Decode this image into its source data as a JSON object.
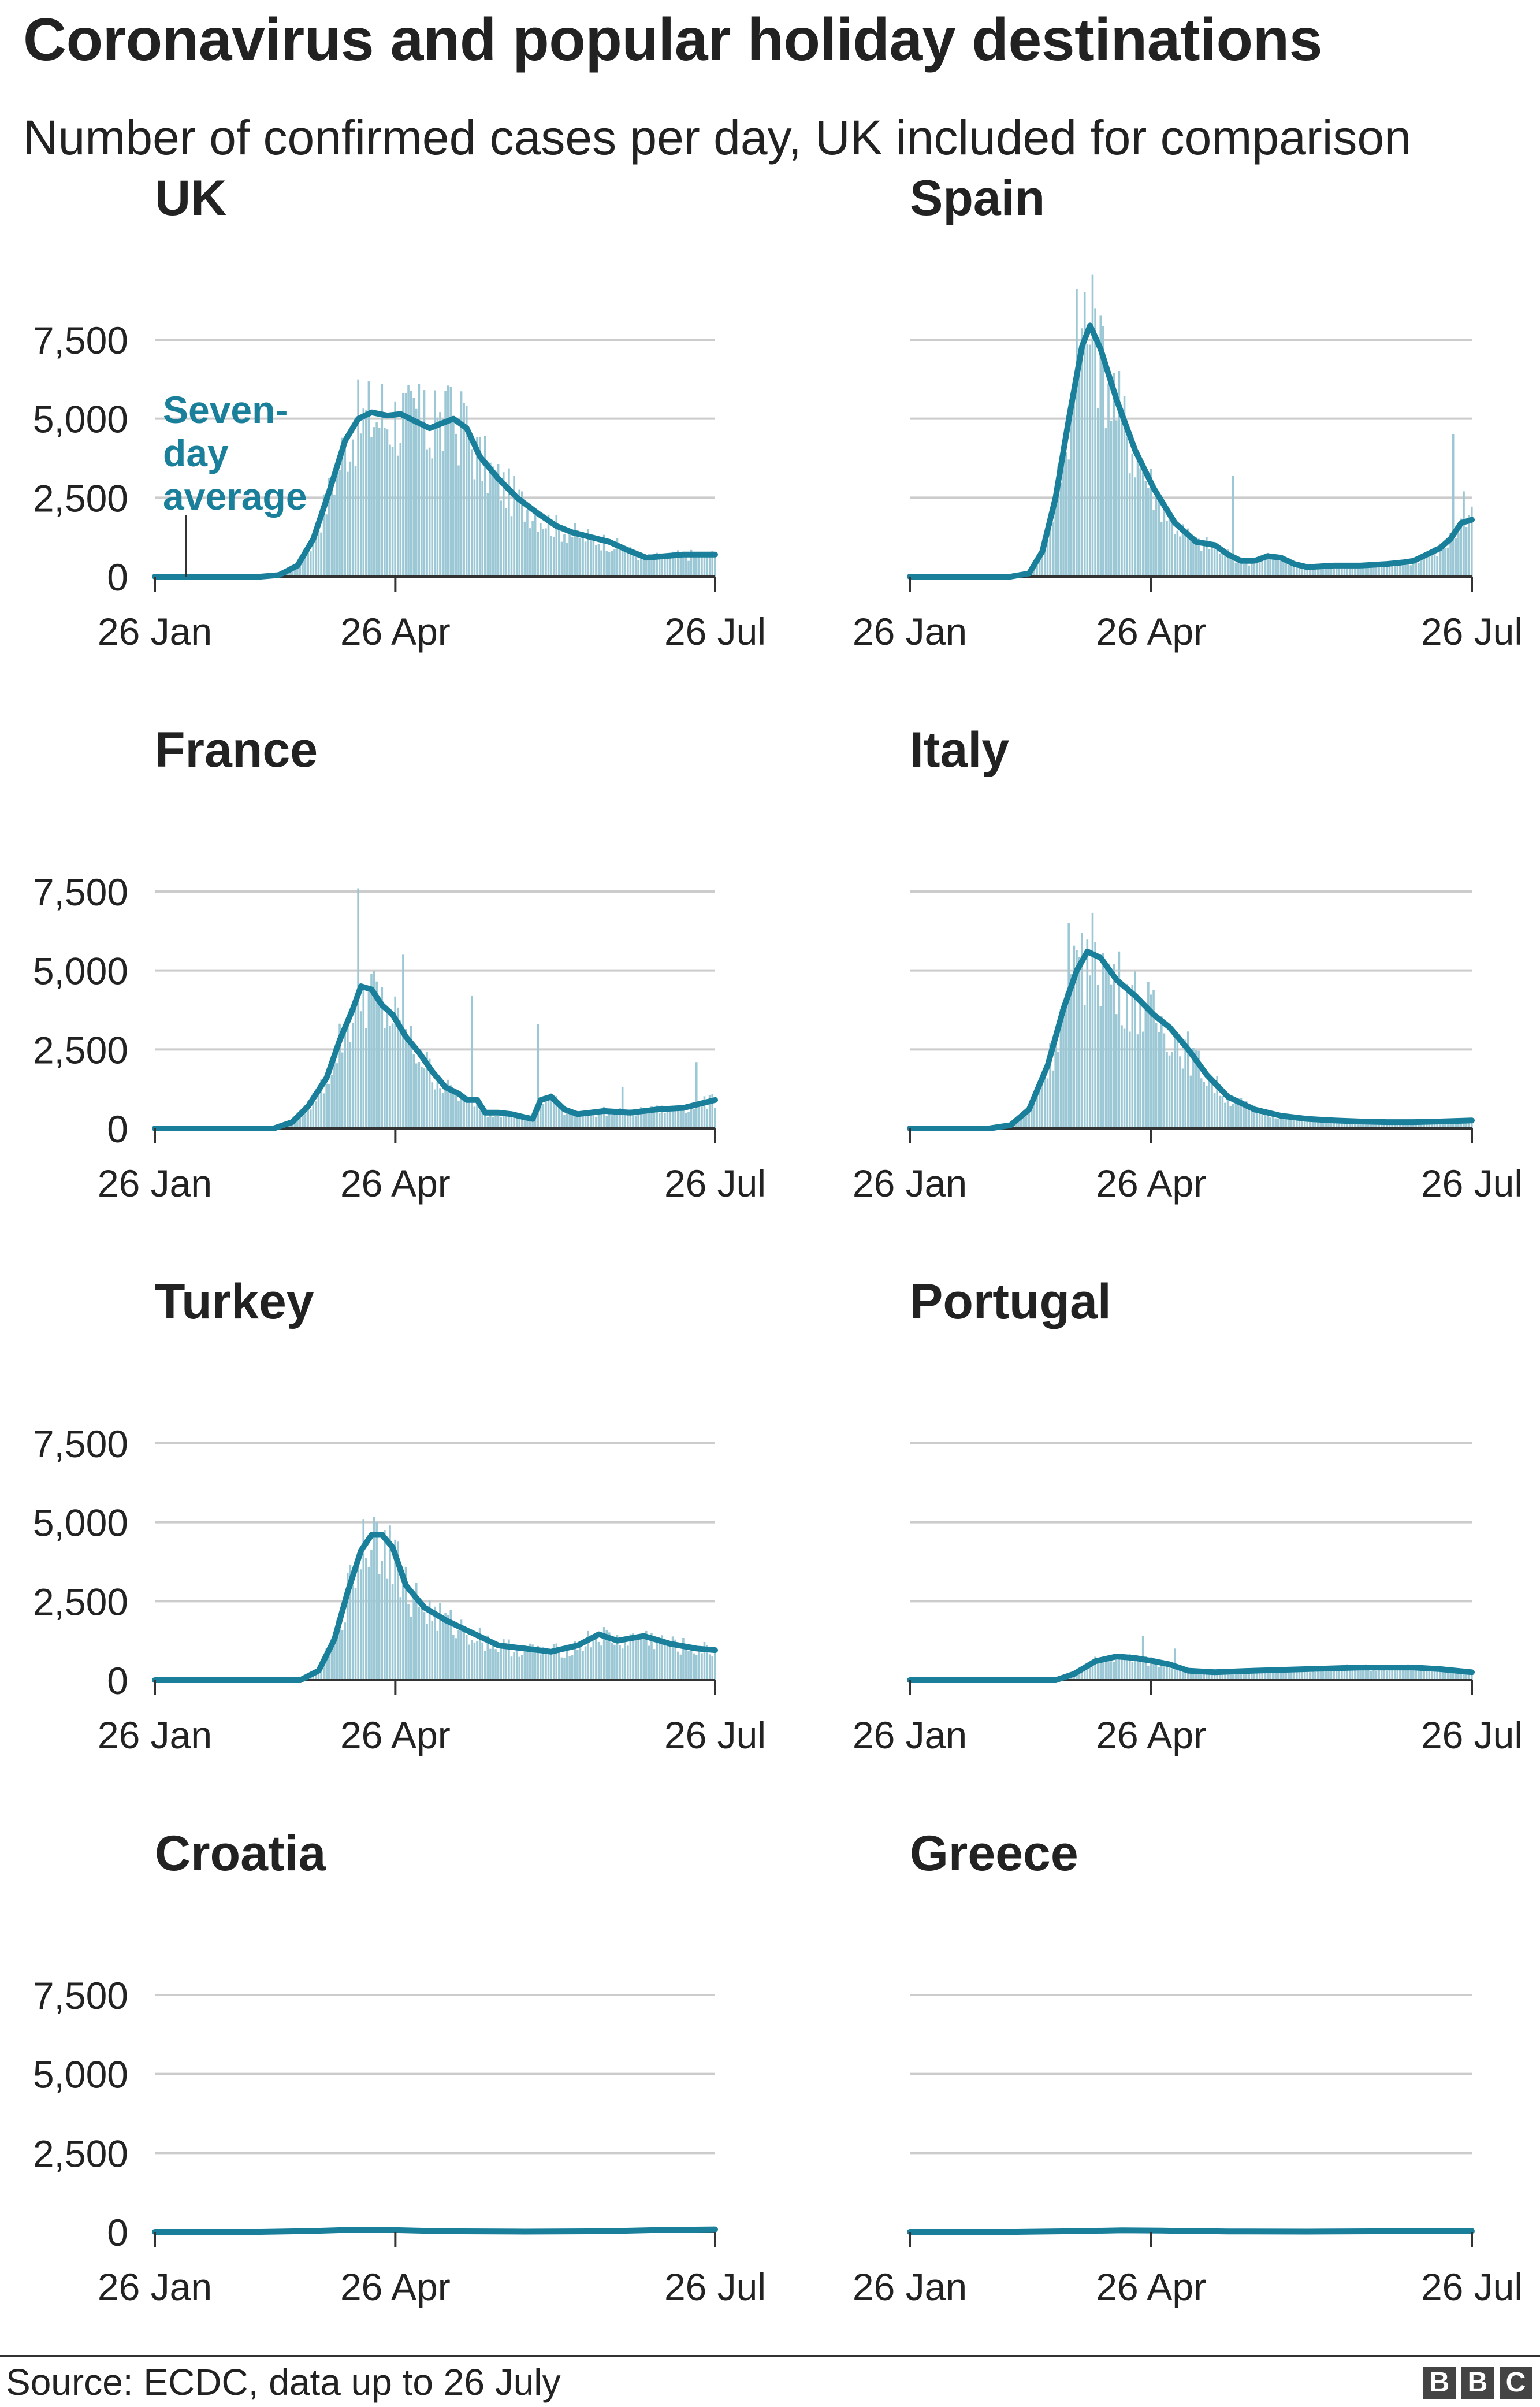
{
  "title": "Coronavirus and popular holiday destinations",
  "subtitle": "Number of confirmed cases per day, UK included for comparison",
  "source": "Source: ECDC, data up to 26 July",
  "logo": [
    "B",
    "B",
    "C"
  ],
  "colors": {
    "line": "#1a7f9a",
    "bar": "#9cc8d6",
    "grid": "#cccccc",
    "axis": "#333333",
    "text": "#222222"
  },
  "annotation": {
    "lines": [
      "Seven-",
      "day",
      "average"
    ]
  },
  "chart_data": [
    {
      "type": "bar+line",
      "title": "UK",
      "x_ticks": [
        "26 Jan",
        "26 Apr",
        "26 Jul"
      ],
      "y_ticks": [
        "0",
        "2,500",
        "5,000",
        "7,500"
      ],
      "ylim": [
        0,
        9000
      ],
      "show_y_labels": true,
      "line_points": [
        [
          0,
          0
        ],
        [
          10,
          0
        ],
        [
          20,
          0
        ],
        [
          30,
          0
        ],
        [
          40,
          0
        ],
        [
          47,
          50
        ],
        [
          54,
          350
        ],
        [
          60,
          1200
        ],
        [
          66,
          2700
        ],
        [
          72,
          4300
        ],
        [
          77,
          5000
        ],
        [
          82,
          5200
        ],
        [
          88,
          5100
        ],
        [
          93,
          5150
        ],
        [
          99,
          4900
        ],
        [
          104,
          4700
        ],
        [
          110,
          4900
        ],
        [
          113,
          5000
        ],
        [
          118,
          4700
        ],
        [
          123,
          3800
        ],
        [
          130,
          3100
        ],
        [
          137,
          2500
        ],
        [
          145,
          2000
        ],
        [
          152,
          1600
        ],
        [
          158,
          1400
        ],
        [
          165,
          1250
        ],
        [
          172,
          1100
        ],
        [
          180,
          800
        ],
        [
          186,
          600
        ],
        [
          193,
          650
        ],
        [
          200,
          700
        ],
        [
          208,
          700
        ],
        [
          212,
          700
        ]
      ],
      "bar_peaks": [
        [
          86,
          6100
        ],
        [
          94,
          5800
        ],
        [
          100,
          6100
        ],
        [
          106,
          5900
        ],
        [
          112,
          6000
        ],
        [
          117,
          5500
        ]
      ]
    },
    {
      "type": "bar+line",
      "title": "Spain",
      "x_ticks": [
        "26 Jan",
        "26 Apr",
        "26 Jul"
      ],
      "y_ticks": [
        "0",
        "2,500",
        "5,000",
        "7,500"
      ],
      "ylim": [
        0,
        9000
      ],
      "show_y_labels": false,
      "line_points": [
        [
          0,
          0
        ],
        [
          20,
          0
        ],
        [
          38,
          0
        ],
        [
          45,
          100
        ],
        [
          50,
          800
        ],
        [
          55,
          2500
        ],
        [
          60,
          5000
        ],
        [
          65,
          7300
        ],
        [
          68,
          7950
        ],
        [
          72,
          7200
        ],
        [
          78,
          5600
        ],
        [
          85,
          4000
        ],
        [
          92,
          2800
        ],
        [
          100,
          1700
        ],
        [
          108,
          1100
        ],
        [
          115,
          1000
        ],
        [
          120,
          700
        ],
        [
          125,
          500
        ],
        [
          130,
          500
        ],
        [
          135,
          650
        ],
        [
          140,
          600
        ],
        [
          145,
          400
        ],
        [
          150,
          300
        ],
        [
          160,
          350
        ],
        [
          170,
          350
        ],
        [
          180,
          400
        ],
        [
          186,
          450
        ],
        [
          190,
          500
        ],
        [
          195,
          700
        ],
        [
          200,
          900
        ],
        [
          204,
          1200
        ],
        [
          208,
          1700
        ],
        [
          212,
          1800
        ]
      ],
      "bar_peaks": [
        [
          63,
          9100
        ],
        [
          66,
          9000
        ],
        [
          70,
          8500
        ],
        [
          122,
          3200
        ],
        [
          205,
          4500
        ],
        [
          209,
          2700
        ]
      ]
    },
    {
      "type": "bar+line",
      "title": "France",
      "x_ticks": [
        "26 Jan",
        "26 Apr",
        "26 Jul"
      ],
      "y_ticks": [
        "0",
        "2,500",
        "5,000",
        "7,500"
      ],
      "ylim": [
        0,
        9000
      ],
      "show_y_labels": true,
      "line_points": [
        [
          0,
          0
        ],
        [
          30,
          0
        ],
        [
          45,
          0
        ],
        [
          52,
          200
        ],
        [
          58,
          700
        ],
        [
          65,
          1600
        ],
        [
          70,
          2800
        ],
        [
          75,
          3800
        ],
        [
          78,
          4500
        ],
        [
          82,
          4400
        ],
        [
          86,
          3900
        ],
        [
          90,
          3600
        ],
        [
          95,
          2900
        ],
        [
          100,
          2400
        ],
        [
          105,
          1800
        ],
        [
          110,
          1300
        ],
        [
          115,
          1100
        ],
        [
          118,
          900
        ],
        [
          122,
          900
        ],
        [
          125,
          500
        ],
        [
          130,
          500
        ],
        [
          135,
          450
        ],
        [
          140,
          350
        ],
        [
          143,
          300
        ],
        [
          146,
          900
        ],
        [
          150,
          1000
        ],
        [
          155,
          600
        ],
        [
          160,
          450
        ],
        [
          170,
          550
        ],
        [
          180,
          500
        ],
        [
          190,
          600
        ],
        [
          200,
          650
        ],
        [
          212,
          900
        ]
      ],
      "bar_peaks": [
        [
          77,
          7600
        ],
        [
          94,
          5500
        ],
        [
          120,
          4200
        ],
        [
          145,
          3300
        ],
        [
          177,
          1300
        ],
        [
          205,
          2100
        ]
      ]
    },
    {
      "type": "bar+line",
      "title": "Italy",
      "x_ticks": [
        "26 Jan",
        "26 Apr",
        "26 Jul"
      ],
      "y_ticks": [
        "0",
        "2,500",
        "5,000",
        "7,500"
      ],
      "ylim": [
        0,
        9000
      ],
      "show_y_labels": false,
      "line_points": [
        [
          0,
          0
        ],
        [
          20,
          0
        ],
        [
          30,
          0
        ],
        [
          38,
          100
        ],
        [
          45,
          600
        ],
        [
          52,
          2000
        ],
        [
          58,
          3800
        ],
        [
          63,
          5000
        ],
        [
          67,
          5600
        ],
        [
          72,
          5400
        ],
        [
          78,
          4700
        ],
        [
          85,
          4200
        ],
        [
          92,
          3600
        ],
        [
          98,
          3200
        ],
        [
          105,
          2500
        ],
        [
          112,
          1700
        ],
        [
          120,
          1000
        ],
        [
          130,
          600
        ],
        [
          140,
          400
        ],
        [
          150,
          300
        ],
        [
          160,
          250
        ],
        [
          170,
          220
        ],
        [
          180,
          200
        ],
        [
          190,
          200
        ],
        [
          200,
          220
        ],
        [
          212,
          250
        ]
      ],
      "bar_peaks": [
        [
          60,
          6500
        ],
        [
          65,
          6200
        ],
        [
          70,
          5900
        ],
        [
          175,
          300
        ]
      ]
    },
    {
      "type": "bar+line",
      "title": "Turkey",
      "x_ticks": [
        "26 Jan",
        "26 Apr",
        "26 Jul"
      ],
      "y_ticks": [
        "0",
        "2,500",
        "5,000",
        "7,500"
      ],
      "ylim": [
        0,
        9000
      ],
      "show_y_labels": true,
      "line_points": [
        [
          0,
          0
        ],
        [
          30,
          0
        ],
        [
          55,
          0
        ],
        [
          62,
          300
        ],
        [
          68,
          1300
        ],
        [
          73,
          2800
        ],
        [
          78,
          4100
        ],
        [
          82,
          4600
        ],
        [
          86,
          4600
        ],
        [
          90,
          4200
        ],
        [
          95,
          3000
        ],
        [
          102,
          2300
        ],
        [
          110,
          1900
        ],
        [
          120,
          1500
        ],
        [
          130,
          1100
        ],
        [
          140,
          1000
        ],
        [
          150,
          900
        ],
        [
          160,
          1100
        ],
        [
          168,
          1450
        ],
        [
          175,
          1250
        ],
        [
          185,
          1400
        ],
        [
          195,
          1150
        ],
        [
          205,
          1000
        ],
        [
          212,
          950
        ]
      ],
      "bar_peaks": [
        [
          79,
          5100
        ],
        [
          84,
          5000
        ],
        [
          89,
          4900
        ]
      ]
    },
    {
      "type": "bar+line",
      "title": "Portugal",
      "x_ticks": [
        "26 Jan",
        "26 Apr",
        "26 Jul"
      ],
      "y_ticks": [
        "0",
        "2,500",
        "5,000",
        "7,500"
      ],
      "ylim": [
        0,
        9000
      ],
      "show_y_labels": false,
      "line_points": [
        [
          0,
          0
        ],
        [
          30,
          0
        ],
        [
          55,
          0
        ],
        [
          62,
          200
        ],
        [
          70,
          600
        ],
        [
          78,
          750
        ],
        [
          85,
          700
        ],
        [
          92,
          600
        ],
        [
          98,
          500
        ],
        [
          105,
          300
        ],
        [
          115,
          250
        ],
        [
          130,
          300
        ],
        [
          150,
          350
        ],
        [
          170,
          400
        ],
        [
          190,
          400
        ],
        [
          200,
          350
        ],
        [
          212,
          250
        ]
      ],
      "bar_peaks": [
        [
          88,
          1400
        ],
        [
          100,
          1000
        ],
        [
          165,
          500
        ]
      ]
    },
    {
      "type": "bar+line",
      "title": "Croatia",
      "x_ticks": [
        "26 Jan",
        "26 Apr",
        "26 Jul"
      ],
      "y_ticks": [
        "0",
        "2,500",
        "5,000",
        "7,500"
      ],
      "ylim": [
        0,
        9000
      ],
      "show_y_labels": true,
      "line_points": [
        [
          0,
          0
        ],
        [
          40,
          0
        ],
        [
          60,
          30
        ],
        [
          75,
          70
        ],
        [
          90,
          60
        ],
        [
          110,
          20
        ],
        [
          140,
          10
        ],
        [
          170,
          20
        ],
        [
          190,
          60
        ],
        [
          212,
          80
        ]
      ],
      "bar_peaks": []
    },
    {
      "type": "bar+line",
      "title": "Greece",
      "x_ticks": [
        "26 Jan",
        "26 Apr",
        "26 Jul"
      ],
      "y_ticks": [
        "0",
        "2,500",
        "5,000",
        "7,500"
      ],
      "ylim": [
        0,
        9000
      ],
      "show_y_labels": false,
      "line_points": [
        [
          0,
          0
        ],
        [
          40,
          0
        ],
        [
          60,
          20
        ],
        [
          80,
          50
        ],
        [
          95,
          40
        ],
        [
          120,
          15
        ],
        [
          150,
          10
        ],
        [
          180,
          20
        ],
        [
          212,
          30
        ]
      ],
      "bar_peaks": []
    }
  ]
}
